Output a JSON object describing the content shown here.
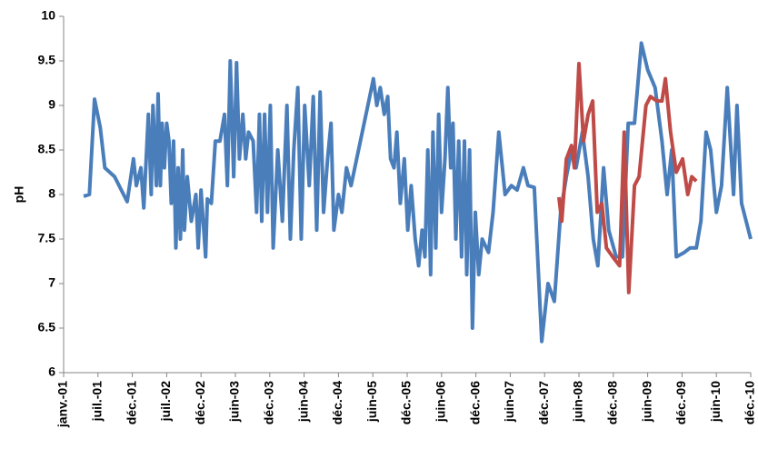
{
  "chart_data": {
    "type": "line",
    "y_label": "pH",
    "xlim": [
      0,
      120
    ],
    "ylim": [
      6,
      10
    ],
    "xticks": [
      {
        "value": 0,
        "label": "janv.-01"
      },
      {
        "value": 6,
        "label": "juil.-01"
      },
      {
        "value": 12,
        "label": "déc.-01"
      },
      {
        "value": 18,
        "label": "juil.-02"
      },
      {
        "value": 24,
        "label": "déc.-02"
      },
      {
        "value": 30,
        "label": "juin-03"
      },
      {
        "value": 36,
        "label": "déc.-03"
      },
      {
        "value": 42,
        "label": "juin-04"
      },
      {
        "value": 48,
        "label": "déc.-04"
      },
      {
        "value": 54,
        "label": "juin-05"
      },
      {
        "value": 60,
        "label": "déc.-05"
      },
      {
        "value": 66,
        "label": "juin-06"
      },
      {
        "value": 72,
        "label": "déc.-06"
      },
      {
        "value": 78,
        "label": "juin-07"
      },
      {
        "value": 84,
        "label": "déc.-07"
      },
      {
        "value": 90,
        "label": "juin-08"
      },
      {
        "value": 96,
        "label": "déc.-08"
      },
      {
        "value": 102,
        "label": "juin-09"
      },
      {
        "value": 108,
        "label": "déc.-09"
      },
      {
        "value": 114,
        "label": "juin-10"
      },
      {
        "value": 120,
        "label": "déc.-10"
      }
    ],
    "yticks": [
      6,
      6.5,
      7,
      7.5,
      8,
      8.5,
      9,
      9.5,
      10
    ],
    "series": [
      {
        "color": "#4a7ebb",
        "x": [
          3.5,
          4.5,
          5.4,
          6.4,
          7.2,
          8.9,
          11.1,
          12.2,
          12.7,
          13.5,
          14,
          14.8,
          15.3,
          15.6,
          16.2,
          16.5,
          16.9,
          17.2,
          17.6,
          18,
          18.4,
          18.8,
          19.2,
          19.6,
          20,
          20.4,
          20.8,
          21.1,
          21.6,
          22.3,
          23.1,
          23.5,
          24,
          24.8,
          25.1,
          25.8,
          26.5,
          27.3,
          28.1,
          28.6,
          29.1,
          29.7,
          30.2,
          30.7,
          31.3,
          31.8,
          32.3,
          33.1,
          33.7,
          34.2,
          34.6,
          35.1,
          35.6,
          36.1,
          36.6,
          37.4,
          38.2,
          39,
          39.6,
          40.2,
          40.9,
          41.5,
          42.1,
          42.9,
          43.6,
          44.2,
          44.8,
          45.4,
          46.1,
          46.7,
          47.2,
          48,
          48.6,
          49.4,
          50.2,
          53.3,
          54.1,
          54.7,
          55.3,
          56,
          56.6,
          57.1,
          57.7,
          58.2,
          58.8,
          59.5,
          60.1,
          60.7,
          61.4,
          62,
          62.6,
          63.1,
          63.6,
          64.1,
          64.5,
          65,
          65.5,
          66,
          66.6,
          67.1,
          67.6,
          68,
          68.5,
          69,
          69.5,
          70,
          70.4,
          70.9,
          71.4,
          71.9,
          72.5,
          73.1,
          74.2,
          75,
          76,
          77.1,
          78.2,
          79.2,
          80.3,
          81.1,
          82.2,
          83.5,
          84.6,
          85.7,
          86.8,
          87.8,
          88.7,
          89.5,
          90.6,
          91.6,
          92.5,
          93.3,
          94.3,
          95.2,
          96.5,
          97.6,
          98.6,
          99.7,
          100.9,
          102,
          103.3,
          104.5,
          105.4,
          106.2,
          107,
          108.4,
          109.4,
          110.5,
          111.3,
          112.2,
          113,
          114,
          114.9,
          115.9,
          117,
          117.6,
          118.4,
          120
        ],
        "values": [
          7.98,
          8.0,
          9.07,
          8.75,
          8.3,
          8.2,
          7.92,
          8.4,
          8.1,
          8.3,
          7.85,
          8.9,
          8.0,
          9.0,
          8.1,
          9.13,
          8.1,
          8.8,
          8.3,
          8.8,
          8.6,
          7.9,
          8.6,
          7.4,
          8.3,
          7.5,
          8.5,
          7.6,
          8.2,
          7.7,
          8.0,
          7.4,
          8.05,
          7.3,
          7.95,
          7.9,
          8.6,
          8.6,
          8.9,
          8.1,
          9.5,
          8.2,
          9.48,
          8.4,
          8.9,
          8.4,
          8.7,
          8.6,
          7.8,
          8.9,
          7.7,
          8.9,
          7.8,
          9.0,
          7.4,
          8.5,
          7.7,
          9.0,
          7.5,
          8.5,
          9.2,
          7.5,
          9.0,
          8.1,
          9.1,
          7.6,
          9.15,
          7.8,
          8.4,
          8.8,
          7.6,
          8.0,
          7.8,
          8.3,
          8.1,
          9.05,
          9.3,
          9.0,
          9.2,
          8.9,
          9.1,
          8.4,
          8.3,
          8.7,
          7.9,
          8.4,
          7.6,
          8.1,
          7.5,
          7.2,
          7.6,
          7.3,
          8.5,
          7.1,
          8.7,
          7.4,
          8.9,
          7.8,
          8.4,
          9.2,
          8.3,
          8.8,
          7.5,
          8.6,
          7.3,
          8.6,
          7.1,
          8.5,
          6.5,
          7.8,
          7.1,
          7.5,
          7.35,
          7.8,
          8.7,
          8.0,
          8.1,
          8.05,
          8.3,
          8.1,
          8.08,
          6.35,
          7.0,
          6.8,
          7.8,
          8.2,
          8.5,
          8.3,
          8.7,
          8.2,
          7.5,
          7.2,
          8.3,
          7.6,
          7.3,
          7.3,
          8.8,
          8.8,
          9.7,
          9.4,
          9.2,
          8.6,
          8.0,
          8.5,
          7.3,
          7.35,
          7.4,
          7.4,
          7.7,
          8.7,
          8.5,
          7.8,
          8.1,
          9.2,
          8.0,
          9.0,
          7.9,
          7.5
        ]
      },
      {
        "color": "#be4b48",
        "x": [
          86.5,
          87,
          87.8,
          88.7,
          89.2,
          90,
          90.8,
          91.6,
          92.4,
          93.2,
          94,
          94.8,
          95.9,
          97.1,
          97.9,
          98.7,
          99.7,
          100.5,
          101.7,
          102.5,
          103.6,
          104.5,
          105.1,
          106,
          107,
          108.1,
          109,
          109.7,
          110.5
        ],
        "values": [
          7.97,
          7.7,
          8.4,
          8.55,
          8.3,
          9.47,
          8.6,
          8.9,
          9.05,
          7.8,
          7.9,
          7.4,
          7.3,
          7.2,
          8.7,
          6.9,
          8.1,
          8.2,
          9.0,
          9.1,
          9.05,
          9.05,
          9.3,
          8.7,
          8.25,
          8.4,
          8.0,
          8.2,
          8.15
        ]
      }
    ]
  }
}
